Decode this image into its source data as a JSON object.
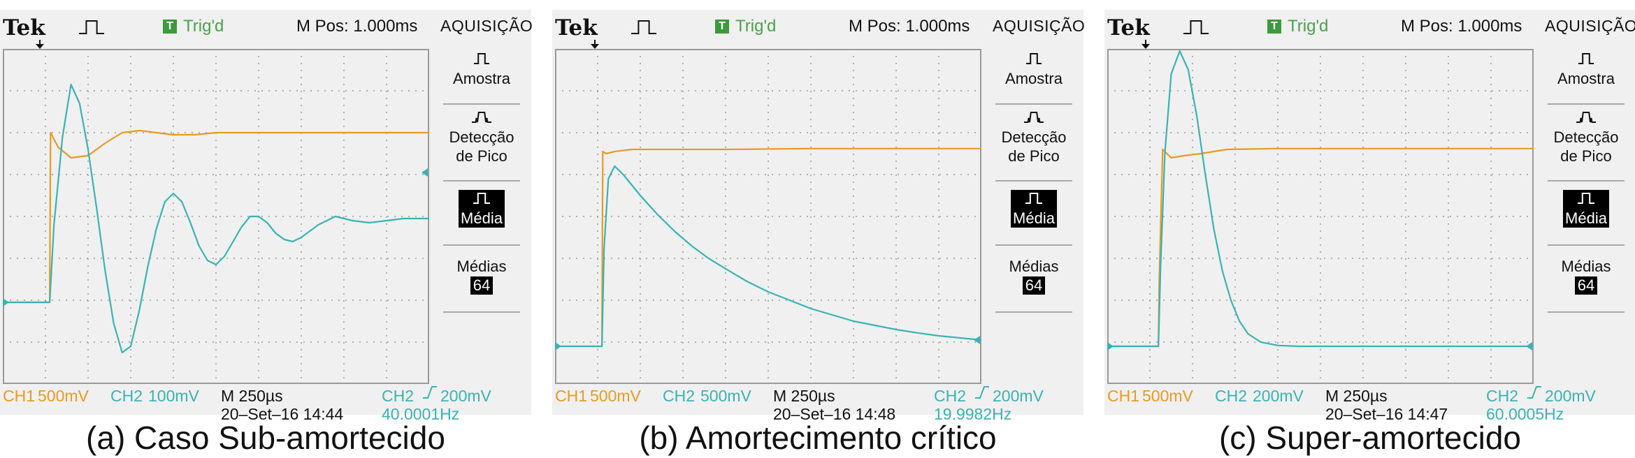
{
  "colors": {
    "ch1": "#e79b22",
    "ch2": "#39b3b3",
    "grid": "#9a9a9a",
    "bg": "#f0f0f0"
  },
  "panels": [
    {
      "brand": "Tek",
      "trigger_status": "Trig'd",
      "m_pos": "M Pos: 1.000ms",
      "menu_title": "AQUISIÇÃO",
      "menu": {
        "amostra": "Amostra",
        "deteccao_1": "Detecção",
        "deteccao_2": "de Pico",
        "media": "Média",
        "medias": "Médias",
        "medias_value": "64"
      },
      "status": {
        "ch1": "CH1",
        "ch1_scale": "500mV",
        "ch2": "CH2",
        "ch2_scale": "100mV",
        "timebase": "M 250µs",
        "datetime": "20–Set–16 14:44",
        "trig_src": "CH2",
        "trig_level": "200mV",
        "freq": "40.0001Hz"
      },
      "caption": "(a) Caso Sub-amortecido"
    },
    {
      "brand": "Tek",
      "trigger_status": "Trig'd",
      "m_pos": "M Pos: 1.000ms",
      "menu_title": "AQUISIÇÃO",
      "menu": {
        "amostra": "Amostra",
        "deteccao_1": "Detecção",
        "deteccao_2": "de Pico",
        "media": "Média",
        "medias": "Médias",
        "medias_value": "64"
      },
      "status": {
        "ch1": "CH1",
        "ch1_scale": "500mV",
        "ch2": "CH2",
        "ch2_scale": "500mV",
        "timebase": "M 250µs",
        "datetime": "20–Set–16 14:48",
        "trig_src": "CH2",
        "trig_level": "200mV",
        "freq": "19.9982Hz"
      },
      "caption": "(b) Amortecimento crítico"
    },
    {
      "brand": "Tek",
      "trigger_status": "Trig'd",
      "m_pos": "M Pos: 1.000ms",
      "menu_title": "AQUISIÇÃO",
      "menu": {
        "amostra": "Amostra",
        "deteccao_1": "Detecção",
        "deteccao_2": "de Pico",
        "media": "Média",
        "medias": "Médias",
        "medias_value": "64"
      },
      "status": {
        "ch1": "CH1",
        "ch1_scale": "500mV",
        "ch2": "CH2",
        "ch2_scale": "200mV",
        "timebase": "M 250µs",
        "datetime": "20–Set–16 14:47",
        "trig_src": "CH2",
        "trig_level": "200mV",
        "freq": "60.0005Hz"
      },
      "caption": "(c) Super-amortecido"
    }
  ],
  "chart_data": [
    {
      "type": "line",
      "title": "(a) Caso Sub-amortecido",
      "x_divisions": [
        0,
        10
      ],
      "y_divisions": [
        -4,
        4
      ],
      "grid": true,
      "series": [
        {
          "name": "CH1",
          "x": [
            0,
            1.1,
            1.12,
            1.3,
            1.6,
            2.0,
            2.4,
            2.8,
            3.2,
            3.6,
            4.0,
            4.5,
            5,
            6,
            7,
            8,
            9,
            10
          ],
          "y": [
            -2.05,
            -2.05,
            2.0,
            1.65,
            1.4,
            1.45,
            1.75,
            2.0,
            2.05,
            2.0,
            1.95,
            1.95,
            2.0,
            2.0,
            2.0,
            2.0,
            2.0,
            2.0
          ]
        },
        {
          "name": "CH2",
          "x": [
            0,
            1.1,
            1.2,
            1.4,
            1.6,
            1.8,
            2.0,
            2.2,
            2.4,
            2.6,
            2.8,
            3.0,
            3.2,
            3.4,
            3.6,
            3.8,
            4.0,
            4.2,
            4.4,
            4.6,
            4.8,
            5.0,
            5.2,
            5.4,
            5.6,
            5.8,
            6.0,
            6.2,
            6.4,
            6.6,
            6.8,
            7.0,
            7.4,
            7.8,
            8.2,
            8.6,
            9.0,
            9.4,
            9.8,
            10
          ],
          "y": [
            -2.05,
            -2.05,
            -0.2,
            1.9,
            3.15,
            2.7,
            1.6,
            0.2,
            -1.3,
            -2.55,
            -3.25,
            -3.1,
            -2.25,
            -1.2,
            -0.3,
            0.35,
            0.55,
            0.35,
            -0.15,
            -0.7,
            -1.05,
            -1.15,
            -0.95,
            -0.6,
            -0.25,
            0.0,
            0.0,
            -0.15,
            -0.4,
            -0.55,
            -0.6,
            -0.5,
            -0.2,
            0.0,
            -0.1,
            -0.15,
            -0.1,
            -0.05,
            -0.05,
            -0.05
          ]
        }
      ]
    },
    {
      "type": "line",
      "title": "(b) Amortecimento crítico",
      "x_divisions": [
        0,
        10
      ],
      "y_divisions": [
        -4,
        4
      ],
      "grid": true,
      "series": [
        {
          "name": "CH1",
          "x": [
            0,
            1.1,
            1.12,
            1.2,
            1.4,
            1.8,
            2.5,
            4,
            6,
            8,
            10
          ],
          "y": [
            -3.1,
            -3.1,
            1.55,
            1.5,
            1.55,
            1.6,
            1.6,
            1.6,
            1.62,
            1.62,
            1.62
          ]
        },
        {
          "name": "CH2",
          "x": [
            0,
            1.1,
            1.15,
            1.25,
            1.4,
            1.6,
            1.8,
            2.0,
            2.4,
            2.8,
            3.2,
            3.6,
            4.0,
            4.5,
            5,
            5.5,
            6,
            6.5,
            7,
            7.5,
            8,
            8.5,
            9,
            9.5,
            10
          ],
          "y": [
            -3.1,
            -3.1,
            -0.8,
            0.9,
            1.2,
            1.0,
            0.75,
            0.5,
            0.05,
            -0.35,
            -0.7,
            -1.0,
            -1.25,
            -1.55,
            -1.8,
            -2.0,
            -2.2,
            -2.35,
            -2.5,
            -2.6,
            -2.7,
            -2.78,
            -2.85,
            -2.9,
            -2.95
          ]
        }
      ]
    },
    {
      "type": "line",
      "title": "(c) Super-amortecido",
      "x_divisions": [
        0,
        10
      ],
      "y_divisions": [
        -4,
        4
      ],
      "grid": true,
      "series": [
        {
          "name": "CH1",
          "x": [
            0,
            1.2,
            1.22,
            1.3,
            1.5,
            1.8,
            2.2,
            2.8,
            4,
            6,
            8,
            10
          ],
          "y": [
            -3.1,
            -3.1,
            -1.5,
            1.6,
            1.4,
            1.45,
            1.5,
            1.6,
            1.62,
            1.62,
            1.62,
            1.62
          ]
        },
        {
          "name": "CH2",
          "x": [
            0,
            1.2,
            1.25,
            1.35,
            1.5,
            1.7,
            1.9,
            2.1,
            2.3,
            2.5,
            2.7,
            2.9,
            3.1,
            3.3,
            3.6,
            4.0,
            4.5,
            5,
            6,
            8,
            10
          ],
          "y": [
            -3.1,
            -3.1,
            -1.2,
            1.5,
            3.4,
            3.95,
            3.5,
            2.4,
            1.0,
            -0.3,
            -1.3,
            -2.0,
            -2.5,
            -2.8,
            -3.0,
            -3.08,
            -3.1,
            -3.1,
            -3.1,
            -3.1,
            -3.1
          ]
        }
      ]
    }
  ]
}
